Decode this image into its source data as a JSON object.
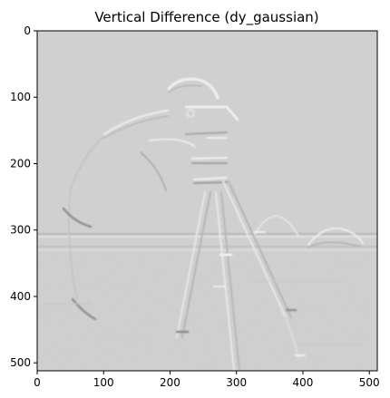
{
  "chart_data": {
    "type": "heatmap",
    "title": "Vertical Difference (dy_gaussian)",
    "xlabel": "",
    "ylabel": "",
    "colormap": "gray",
    "image_size": [
      512,
      512
    ],
    "xlim": [
      0,
      512
    ],
    "ylim": [
      512,
      0
    ],
    "x_ticks": [
      0,
      100,
      200,
      300,
      400,
      500
    ],
    "y_ticks": [
      0,
      100,
      200,
      300,
      400,
      500
    ],
    "grid": false,
    "background_level_hex": "#d0d0d0",
    "description_of_content": "Gaussian vertical-derivative response of the cameraman image: mostly flat mid-gray with embossed highlights and shadows along horizontal edges (photographer, camera, tripod, horizon buildings, grass)."
  }
}
